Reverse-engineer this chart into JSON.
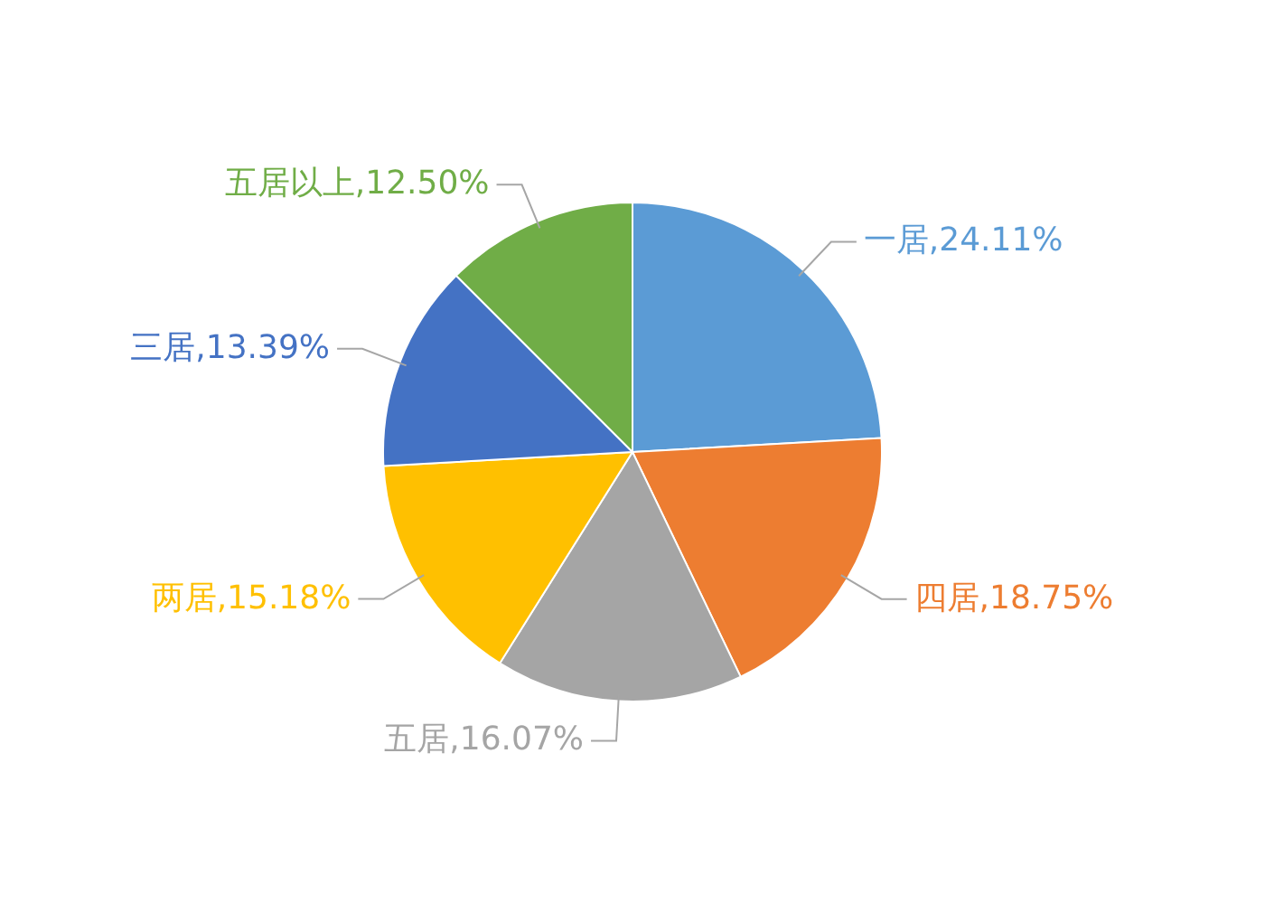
{
  "chart_data": {
    "type": "pie",
    "categories": [
      "一居",
      "四居",
      "五居",
      "两居",
      "三居",
      "五居以上"
    ],
    "values": [
      24.11,
      18.75,
      16.07,
      15.18,
      13.39,
      12.5
    ],
    "colors": [
      "#5b9bd5",
      "#ed7d31",
      "#a5a5a5",
      "#ffc000",
      "#4472c4",
      "#70ad47"
    ],
    "value_labels": [
      ",24.11%",
      ",18.75%",
      ",16.07%",
      ",15.18%",
      ",13.39%",
      ",12.50%"
    ]
  }
}
